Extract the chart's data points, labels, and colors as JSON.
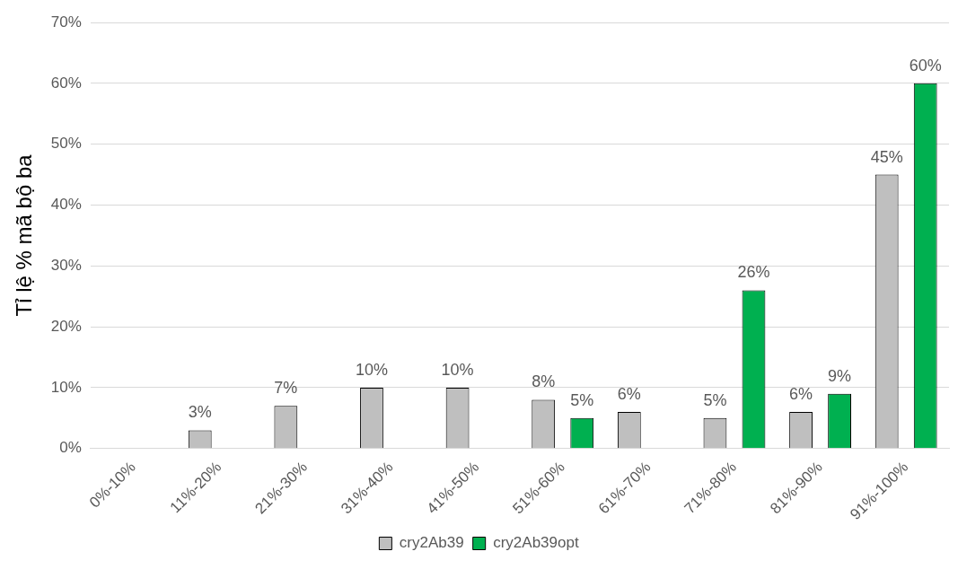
{
  "chart_data": {
    "type": "bar",
    "ylabel": "Tỉ lệ % mã bộ ba",
    "categories": [
      "0%-10%",
      "11%-20%",
      "21%-30%",
      "31%-40%",
      "41%-50%",
      "51%-60%",
      "61%-70%",
      "71%-80%",
      "81%-90%",
      "91%-100%"
    ],
    "series": [
      {
        "name": "cry2Ab39",
        "color": "#bfbfbf",
        "values": [
          null,
          3,
          7,
          10,
          10,
          8,
          6,
          5,
          6,
          45
        ],
        "value_labels": [
          null,
          "3%",
          "7%",
          "10%",
          "10%",
          "8%",
          "6%",
          "5%",
          "6%",
          "45%"
        ]
      },
      {
        "name": "cry2Ab39opt",
        "color": "#00b050",
        "values": [
          null,
          null,
          null,
          null,
          null,
          5,
          null,
          26,
          9,
          60
        ],
        "value_labels": [
          null,
          null,
          null,
          null,
          null,
          "5%",
          null,
          "26%",
          "9%",
          "60%"
        ]
      }
    ],
    "ylim": [
      0,
      70
    ],
    "yticks": [
      {
        "value": 0,
        "label": "0%"
      },
      {
        "value": 10,
        "label": "10%"
      },
      {
        "value": 20,
        "label": "20%"
      },
      {
        "value": 30,
        "label": "30%"
      },
      {
        "value": 40,
        "label": "40%"
      },
      {
        "value": 50,
        "label": "50%"
      },
      {
        "value": 60,
        "label": "60%"
      },
      {
        "value": 70,
        "label": "70%"
      }
    ],
    "grid": "y",
    "legend": "bottom"
  }
}
